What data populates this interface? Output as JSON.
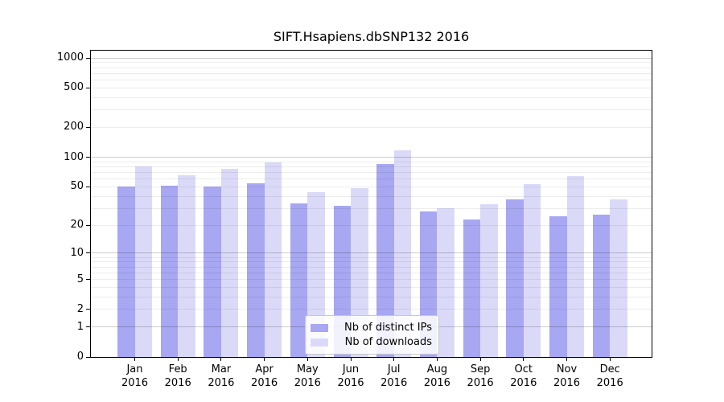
{
  "chart_data": {
    "type": "bar",
    "title": "SIFT.Hsapiens.dbSNP132 2016",
    "scale": "log (plotted position proportional to log10(value+1), 0 at baseline)",
    "categories": [
      "Jan 2016",
      "Feb 2016",
      "Mar 2016",
      "Apr 2016",
      "May 2016",
      "Jun 2016",
      "Jul 2016",
      "Aug 2016",
      "Sep 2016",
      "Oct 2016",
      "Nov 2016",
      "Dec 2016"
    ],
    "series": [
      {
        "name": "Nb of distinct IPs",
        "color": "#a7a7f2",
        "values": [
          50,
          51,
          50,
          54,
          34,
          32,
          85,
          28,
          23,
          37,
          25,
          26
        ]
      },
      {
        "name": "Nb of downloads",
        "color": "#dadaf8",
        "values": [
          80,
          65,
          76,
          88,
          44,
          48,
          117,
          30,
          33,
          53,
          64,
          37
        ]
      }
    ],
    "yticks": [
      0,
      1,
      2,
      5,
      10,
      20,
      50,
      100,
      200,
      500,
      1000
    ],
    "ylim": [
      0,
      1183
    ],
    "xlabel": "",
    "ylabel": "",
    "grid": true,
    "grid_minor_color": "#ededed",
    "grid_major_color": "#c9c9c9",
    "legend_position": "lower center",
    "background": "#ffffff",
    "axis_color": "#000000"
  }
}
